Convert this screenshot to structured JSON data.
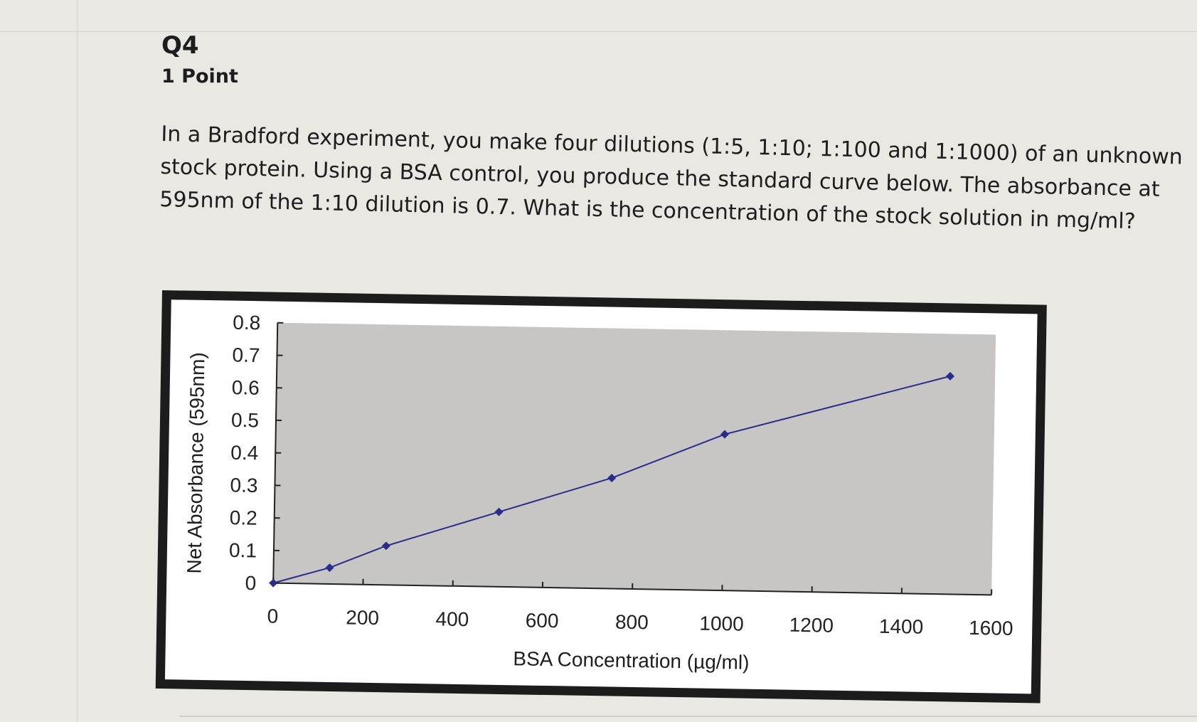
{
  "question": {
    "title": "Q4",
    "points": "1 Point",
    "text": "In a Bradford experiment, you make four dilutions (1:5, 1:10; 1:100 and 1:1000) of an unknown stock protein. Using a BSA control, you produce the standard curve below. The absorbance at 595nm of the 1:10 dilution is 0.7. What is the concentration of the stock solution in mg/ml?"
  },
  "colors": {
    "plot_background": "#c7c6c4",
    "series_line": "#2a2c8c",
    "frame": "#1c1c1c"
  },
  "chart_data": {
    "type": "line",
    "xlabel": "BSA Concentration (µg/ml)",
    "ylabel": "Net Absorbance (595nm)",
    "xlim": [
      0,
      1600
    ],
    "ylim": [
      0,
      0.8
    ],
    "x_ticks": [
      "0",
      "200",
      "400",
      "600",
      "800",
      "1000",
      "1200",
      "1400",
      "1600"
    ],
    "y_ticks": [
      "0",
      "0.1",
      "0.2",
      "0.3",
      "0.4",
      "0.5",
      "0.6",
      "0.7",
      "0.8"
    ],
    "grid": false,
    "legend": "none",
    "series": [
      {
        "x": [
          0,
          125,
          250,
          500,
          750,
          1000,
          1500
        ],
        "y": [
          0.0,
          0.05,
          0.12,
          0.23,
          0.34,
          0.48,
          0.67
        ]
      }
    ]
  }
}
